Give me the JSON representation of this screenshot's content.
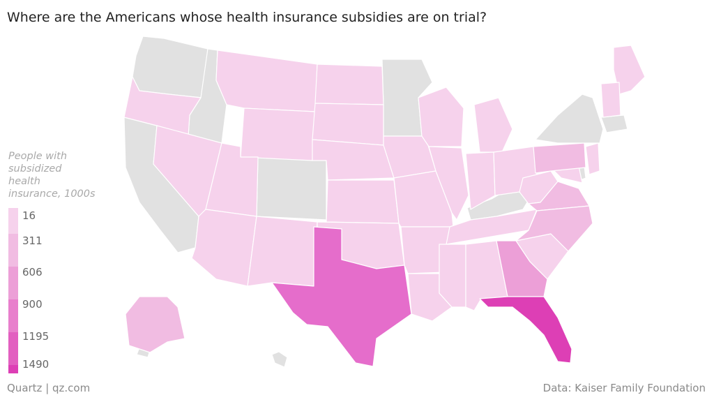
{
  "title": "Where are the Americans whose health insurance subsidies are on trial?",
  "legend": {
    "title": "People with\nsubsidized\nhealth\ninsurance, 1000s",
    "ticks": [
      "16",
      "311",
      "606",
      "900",
      "1195",
      "1490"
    ],
    "colors": [
      "#f6d2ec",
      "#f1bce2",
      "#ec9fd7",
      "#e87fcc",
      "#e25fc0",
      "#dd3fb5"
    ]
  },
  "colors": {
    "no_data": "#e1e1e1",
    "border": "#ffffff"
  },
  "footer": {
    "source_left": "Quartz | qz.com",
    "source_right": "Data: Kaiser Family Foundation"
  }
}
